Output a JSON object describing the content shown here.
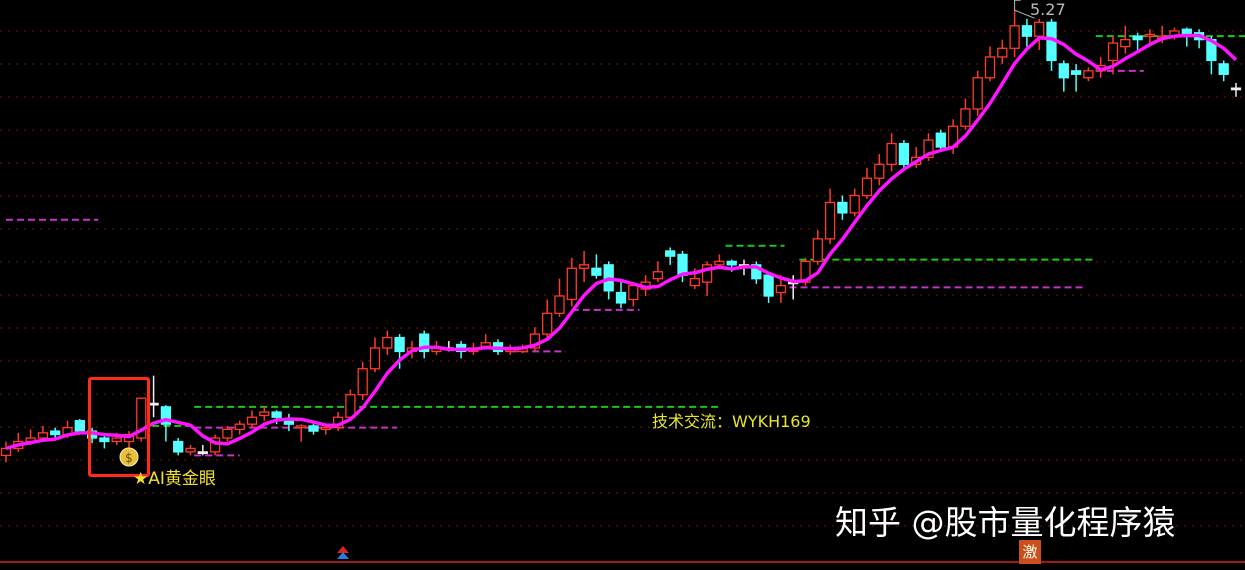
{
  "chart_data": {
    "type": "candlestick",
    "ylim": [
      2.5,
      5.3
    ],
    "grid": true,
    "colors": {
      "up": "#ff3a2a",
      "down": "#54ffff",
      "doji": "#f0f0f0",
      "ma": "#ff14ff",
      "level_green": "#19c819",
      "level_magenta": "#c832c8",
      "grid": "#7a1010",
      "background": "#000000"
    },
    "candles_ohlc": [
      [
        2.7,
        2.74,
        2.78,
        2.66
      ],
      [
        2.74,
        2.78,
        2.83,
        2.72
      ],
      [
        2.78,
        2.8,
        2.85,
        2.76
      ],
      [
        2.8,
        2.83,
        2.87,
        2.78
      ],
      [
        2.84,
        2.82,
        2.86,
        2.79
      ],
      [
        2.82,
        2.86,
        2.9,
        2.8
      ],
      [
        2.9,
        2.84,
        2.91,
        2.82
      ],
      [
        2.84,
        2.8,
        2.86,
        2.77
      ],
      [
        2.8,
        2.78,
        2.82,
        2.74
      ],
      [
        2.78,
        2.8,
        2.83,
        2.76
      ],
      [
        2.78,
        2.82,
        2.84,
        2.74
      ],
      [
        2.8,
        3.03,
        3.03,
        2.78
      ],
      [
        3.0,
        3.0,
        3.16,
        2.92
      ],
      [
        2.98,
        2.88,
        2.99,
        2.78
      ],
      [
        2.78,
        2.72,
        2.8,
        2.7
      ],
      [
        2.72,
        2.74,
        2.76,
        2.7
      ],
      [
        2.72,
        2.72,
        2.76,
        2.7
      ],
      [
        2.72,
        2.8,
        2.82,
        2.7
      ],
      [
        2.8,
        2.85,
        2.87,
        2.78
      ],
      [
        2.85,
        2.88,
        2.9,
        2.82
      ],
      [
        2.88,
        2.92,
        2.96,
        2.86
      ],
      [
        2.93,
        2.95,
        2.98,
        2.9
      ],
      [
        2.95,
        2.92,
        2.96,
        2.88
      ],
      [
        2.9,
        2.88,
        2.94,
        2.84
      ],
      [
        2.86,
        2.87,
        2.88,
        2.78
      ],
      [
        2.87,
        2.84,
        2.9,
        2.82
      ],
      [
        2.85,
        2.86,
        2.88,
        2.82
      ],
      [
        2.86,
        2.92,
        2.95,
        2.84
      ],
      [
        2.92,
        3.05,
        3.08,
        2.9
      ],
      [
        3.05,
        3.2,
        3.24,
        3.02
      ],
      [
        3.2,
        3.32,
        3.38,
        3.18
      ],
      [
        3.32,
        3.38,
        3.42,
        3.28
      ],
      [
        3.38,
        3.3,
        3.4,
        3.2
      ],
      [
        3.3,
        3.32,
        3.36,
        3.26
      ],
      [
        3.4,
        3.3,
        3.42,
        3.26
      ],
      [
        3.3,
        3.32,
        3.36,
        3.28
      ],
      [
        3.32,
        3.32,
        3.36,
        3.3
      ],
      [
        3.34,
        3.3,
        3.36,
        3.26
      ],
      [
        3.3,
        3.32,
        3.35,
        3.28
      ],
      [
        3.33,
        3.35,
        3.4,
        3.32
      ],
      [
        3.35,
        3.3,
        3.37,
        3.28
      ],
      [
        3.3,
        3.31,
        3.34,
        3.28
      ],
      [
        3.3,
        3.32,
        3.34,
        3.29
      ],
      [
        3.32,
        3.4,
        3.44,
        3.3
      ],
      [
        3.4,
        3.52,
        3.6,
        3.38
      ],
      [
        3.52,
        3.62,
        3.72,
        3.5
      ],
      [
        3.6,
        3.78,
        3.84,
        3.56
      ],
      [
        3.78,
        3.8,
        3.88,
        3.7
      ],
      [
        3.78,
        3.74,
        3.86,
        3.72
      ],
      [
        3.8,
        3.65,
        3.82,
        3.6
      ],
      [
        3.64,
        3.58,
        3.72,
        3.55
      ],
      [
        3.6,
        3.68,
        3.7,
        3.56
      ],
      [
        3.66,
        3.7,
        3.74,
        3.62
      ],
      [
        3.72,
        3.76,
        3.82,
        3.7
      ],
      [
        3.88,
        3.85,
        3.9,
        3.8
      ],
      [
        3.86,
        3.74,
        3.88,
        3.7
      ],
      [
        3.68,
        3.72,
        3.78,
        3.66
      ],
      [
        3.7,
        3.8,
        3.82,
        3.62
      ],
      [
        3.8,
        3.82,
        3.86,
        3.78
      ],
      [
        3.82,
        3.8,
        3.83,
        3.76
      ],
      [
        3.8,
        3.8,
        3.83,
        3.74
      ],
      [
        3.8,
        3.72,
        3.82,
        3.69
      ],
      [
        3.74,
        3.62,
        3.76,
        3.58
      ],
      [
        3.64,
        3.68,
        3.74,
        3.58
      ],
      [
        3.7,
        3.7,
        3.74,
        3.6
      ],
      [
        3.7,
        3.82,
        3.84,
        3.68
      ],
      [
        3.82,
        3.95,
        4.0,
        3.8
      ],
      [
        3.95,
        4.16,
        4.24,
        3.92
      ],
      [
        4.16,
        4.1,
        4.2,
        4.06
      ],
      [
        4.1,
        4.2,
        4.24,
        4.08
      ],
      [
        4.2,
        4.3,
        4.36,
        4.18
      ],
      [
        4.3,
        4.38,
        4.44,
        4.26
      ],
      [
        4.38,
        4.5,
        4.56,
        4.34
      ],
      [
        4.5,
        4.38,
        4.52,
        4.34
      ],
      [
        4.38,
        4.42,
        4.48,
        4.36
      ],
      [
        4.42,
        4.52,
        4.56,
        4.4
      ],
      [
        4.56,
        4.48,
        4.58,
        4.46
      ],
      [
        4.48,
        4.6,
        4.64,
        4.44
      ],
      [
        4.6,
        4.7,
        4.76,
        4.58
      ],
      [
        4.7,
        4.88,
        4.92,
        4.66
      ],
      [
        4.88,
        5.0,
        5.06,
        4.86
      ],
      [
        5.0,
        5.05,
        5.1,
        4.96
      ],
      [
        5.05,
        5.18,
        5.27,
        5.0
      ],
      [
        5.18,
        5.12,
        5.22,
        5.06
      ],
      [
        5.12,
        5.2,
        5.22,
        5.04
      ],
      [
        5.2,
        4.98,
        5.22,
        4.92
      ],
      [
        4.96,
        4.88,
        4.98,
        4.8
      ],
      [
        4.92,
        4.9,
        4.96,
        4.8
      ],
      [
        4.88,
        4.92,
        4.94,
        4.86
      ],
      [
        4.92,
        4.95,
        5.0,
        4.88
      ],
      [
        4.98,
        5.08,
        5.12,
        4.9
      ],
      [
        5.06,
        5.1,
        5.18,
        5.02
      ],
      [
        5.12,
        5.1,
        5.14,
        5.02
      ],
      [
        5.12,
        5.13,
        5.16,
        5.08
      ],
      [
        5.11,
        5.12,
        5.18,
        5.08
      ],
      [
        5.12,
        5.15,
        5.17,
        5.1
      ],
      [
        5.16,
        5.12,
        5.17,
        5.06
      ],
      [
        5.14,
        5.1,
        5.16,
        5.05
      ],
      [
        5.1,
        4.98,
        5.12,
        4.9
      ],
      [
        4.96,
        4.9,
        4.98,
        4.86
      ],
      [
        4.82,
        4.82,
        4.85,
        4.77
      ]
    ],
    "ma_period": 5,
    "levels": [
      {
        "price": 4.06,
        "from": 0,
        "to": 7.5,
        "color": "level_magenta"
      },
      {
        "price": 2.87,
        "from": 11,
        "to": 15.3,
        "color": "level_green"
      },
      {
        "price": 2.98,
        "from": 15.3,
        "to": 58,
        "color": "level_green"
      },
      {
        "price": 2.86,
        "from": 15.3,
        "to": 31.8,
        "color": "level_magenta"
      },
      {
        "price": 2.7,
        "from": 15.3,
        "to": 19,
        "color": "level_magenta"
      },
      {
        "price": 3.3,
        "from": 41,
        "to": 45.5,
        "color": "level_magenta"
      },
      {
        "price": 3.54,
        "from": 46,
        "to": 51.5,
        "color": "level_magenta"
      },
      {
        "price": 3.91,
        "from": 58.5,
        "to": 63.3,
        "color": "level_green"
      },
      {
        "price": 3.83,
        "from": 64.5,
        "to": 88.5,
        "color": "level_green"
      },
      {
        "price": 3.67,
        "from": 63.7,
        "to": 87.7,
        "color": "level_magenta"
      },
      {
        "price": 5.12,
        "from": 88.6,
        "to": 101,
        "color": "level_green"
      },
      {
        "price": 4.92,
        "from": 88.6,
        "to": 92.5,
        "color": "level_magenta"
      }
    ],
    "high_marker": {
      "label": "5.27",
      "candle": 82
    },
    "signal_candle": 10
  },
  "annotations": {
    "contact": "技术交流：WYKH169",
    "signal": "★AI黄金眼",
    "watermark": "知乎 @股市量化程序猿",
    "badge": "激"
  }
}
